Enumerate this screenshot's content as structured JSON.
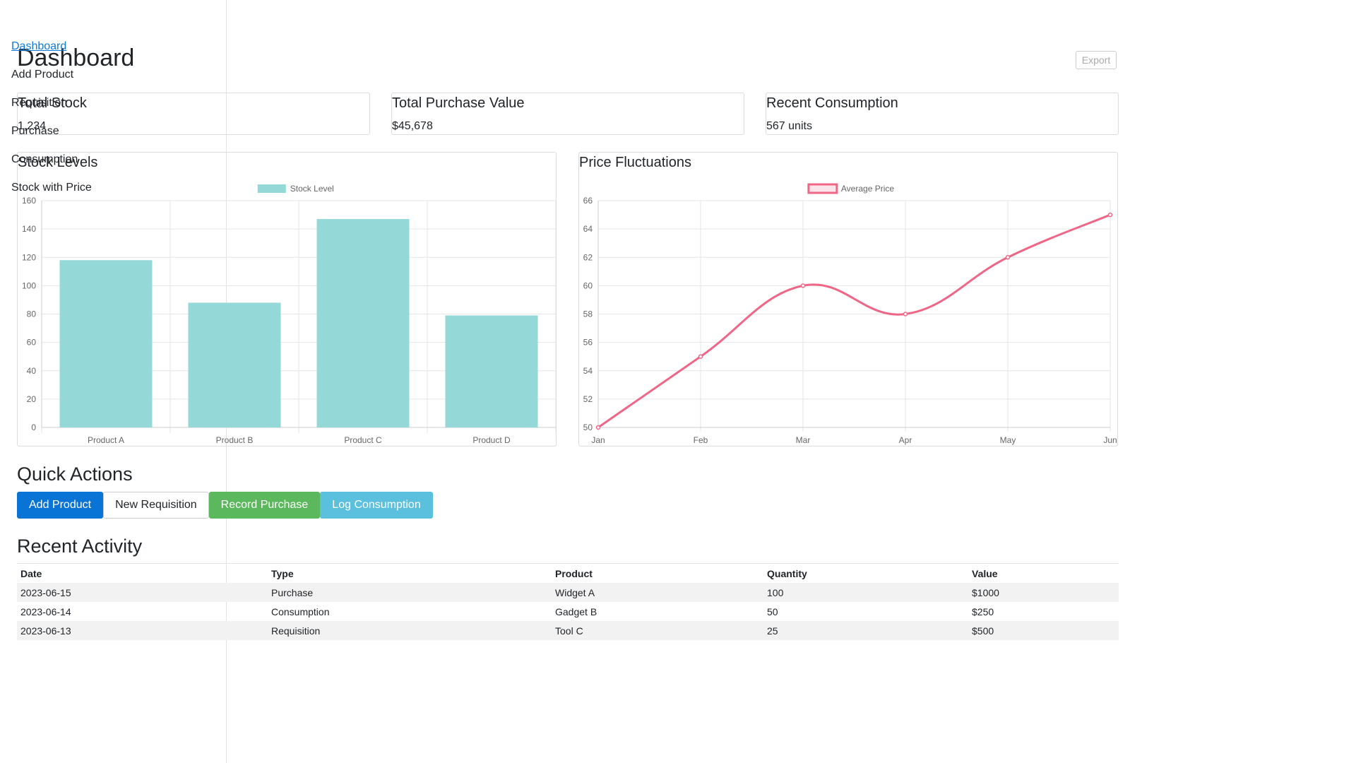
{
  "sidebar": {
    "items": [
      {
        "label": "Dashboard",
        "active": true
      },
      {
        "label": "Add Product"
      },
      {
        "label": "Requisition"
      },
      {
        "label": "Purchase"
      },
      {
        "label": "Consumption"
      },
      {
        "label": "Stock with Price"
      }
    ]
  },
  "page": {
    "title": "Dashboard",
    "export_label": "Export"
  },
  "stats": [
    {
      "title": "Total Stock",
      "value": "1,234"
    },
    {
      "title": "Total Purchase Value",
      "value": "$45,678"
    },
    {
      "title": "Recent Consumption",
      "value": "567 units"
    }
  ],
  "charts": {
    "stock": {
      "title": "Stock Levels"
    },
    "price": {
      "title": "Price Fluctuations"
    }
  },
  "chart_data": [
    {
      "type": "bar",
      "title": "Stock Levels",
      "categories": [
        "Product A",
        "Product B",
        "Product C",
        "Product D"
      ],
      "series": [
        {
          "name": "Stock Level",
          "values": [
            118,
            88,
            147,
            79
          ],
          "color": "#94d8d8"
        }
      ],
      "ylim": [
        0,
        160
      ],
      "yticks": [
        0,
        20,
        40,
        60,
        80,
        100,
        120,
        140,
        160
      ],
      "legend": "top",
      "grid": true
    },
    {
      "type": "line",
      "title": "Price Fluctuations",
      "categories": [
        "Jan",
        "Feb",
        "Mar",
        "Apr",
        "May",
        "Jun"
      ],
      "series": [
        {
          "name": "Average Price",
          "values": [
            50,
            55,
            60,
            58,
            62,
            65
          ],
          "color": "#f06686"
        }
      ],
      "ylim": [
        50,
        66
      ],
      "yticks": [
        50,
        52,
        54,
        56,
        58,
        60,
        62,
        64,
        66
      ],
      "legend": "top",
      "grid": true
    }
  ],
  "quick_actions": {
    "title": "Quick Actions",
    "buttons": {
      "add_product": "Add Product",
      "new_requisition": "New Requisition",
      "record_purchase": "Record Purchase",
      "log_consumption": "Log Consumption"
    }
  },
  "activity": {
    "title": "Recent Activity",
    "headers": [
      "Date",
      "Type",
      "Product",
      "Quantity",
      "Value"
    ],
    "rows": [
      [
        "2023-06-15",
        "Purchase",
        "Widget A",
        "100",
        "$1000"
      ],
      [
        "2023-06-14",
        "Consumption",
        "Gadget B",
        "50",
        "$250"
      ],
      [
        "2023-06-13",
        "Requisition",
        "Tool C",
        "25",
        "$500"
      ]
    ]
  }
}
